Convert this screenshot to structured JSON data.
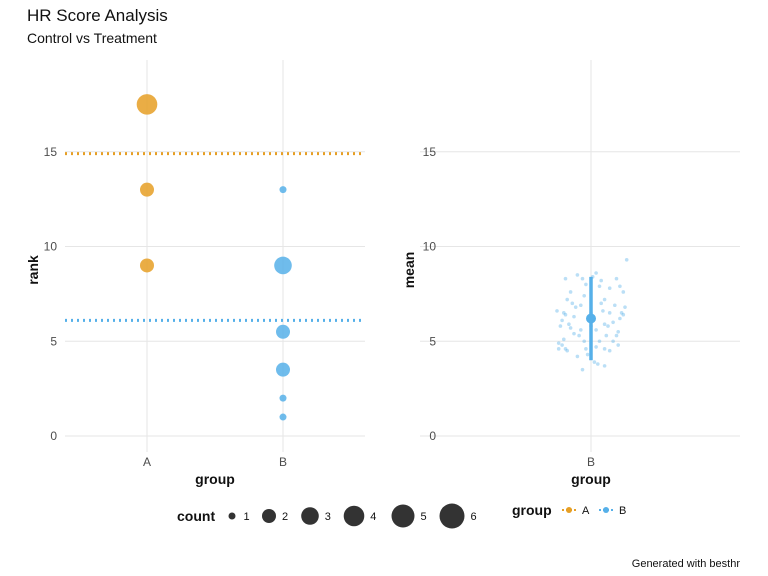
{
  "chart_data": [
    {
      "type": "scatter",
      "title": "HR Score Analysis",
      "subtitle": "Control vs Treatment",
      "xlabel": "group",
      "ylabel": "rank",
      "categories": [
        "A",
        "B"
      ],
      "ylim": [
        -0.8,
        19
      ],
      "yticks": [
        0,
        5,
        10,
        15
      ],
      "grid": true,
      "points": [
        {
          "group": "A",
          "rank": 17.5,
          "count": 4
        },
        {
          "group": "A",
          "rank": 13,
          "count": 2
        },
        {
          "group": "A",
          "rank": 9,
          "count": 2
        },
        {
          "group": "B",
          "rank": 13,
          "count": 1
        },
        {
          "group": "B",
          "rank": 9,
          "count": 3
        },
        {
          "group": "B",
          "rank": 5.5,
          "count": 2
        },
        {
          "group": "B",
          "rank": 3.5,
          "count": 2
        },
        {
          "group": "B",
          "rank": 2,
          "count": 1
        },
        {
          "group": "B",
          "rank": 1,
          "count": 1
        }
      ],
      "hlines": [
        {
          "group": "A",
          "value": 14.9
        },
        {
          "group": "B",
          "value": 6.1
        }
      ]
    },
    {
      "type": "scatter",
      "xlabel": "group",
      "ylabel": "mean",
      "categories": [
        "B"
      ],
      "ylim": [
        -0.8,
        19
      ],
      "yticks": [
        0,
        5,
        10,
        15
      ],
      "grid": true,
      "summary": {
        "group": "B",
        "mean": 6.2,
        "low": 4.0,
        "high": 8.4
      },
      "jitter_points": [
        [
          -0.08,
          8.5
        ],
        [
          0.01,
          8.4
        ],
        [
          0.03,
          8.6
        ],
        [
          -0.05,
          8.3
        ],
        [
          0.06,
          8.2
        ],
        [
          0.15,
          8.3
        ],
        [
          -0.15,
          8.3
        ],
        [
          0.21,
          9.3
        ],
        [
          -0.12,
          7.6
        ],
        [
          -0.03,
          8.0
        ],
        [
          0.05,
          7.9
        ],
        [
          0.17,
          7.9
        ],
        [
          0.11,
          7.8
        ],
        [
          0.19,
          7.6
        ],
        [
          -0.14,
          7.2
        ],
        [
          0.08,
          7.2
        ],
        [
          -0.11,
          7.0
        ],
        [
          -0.06,
          6.9
        ],
        [
          -0.04,
          7.4
        ],
        [
          -0.09,
          6.8
        ],
        [
          0.14,
          6.9
        ],
        [
          0.2,
          6.8
        ],
        [
          0.07,
          6.6
        ],
        [
          0.11,
          6.5
        ],
        [
          0.18,
          6.5
        ],
        [
          -0.2,
          6.6
        ],
        [
          -0.16,
          6.5
        ],
        [
          -0.15,
          6.4
        ],
        [
          0.0,
          6.5
        ],
        [
          -0.17,
          6.1
        ],
        [
          0.13,
          6.0
        ],
        [
          -0.13,
          5.9
        ],
        [
          -0.12,
          5.7
        ],
        [
          -0.06,
          5.6
        ],
        [
          -0.1,
          5.4
        ],
        [
          0.03,
          5.6
        ],
        [
          0.08,
          5.9
        ],
        [
          0.1,
          5.8
        ],
        [
          0.17,
          6.2
        ],
        [
          0.19,
          6.4
        ],
        [
          0.16,
          5.5
        ],
        [
          -0.18,
          5.8
        ],
        [
          -0.16,
          5.1
        ],
        [
          -0.19,
          4.9
        ],
        [
          -0.17,
          4.8
        ],
        [
          -0.07,
          5.3
        ],
        [
          -0.04,
          5.0
        ],
        [
          0.05,
          5.0
        ],
        [
          0.09,
          5.3
        ],
        [
          0.13,
          5.0
        ],
        [
          0.16,
          4.8
        ],
        [
          0.15,
          5.3
        ],
        [
          -0.19,
          4.6
        ],
        [
          -0.15,
          4.6
        ],
        [
          -0.14,
          4.5
        ],
        [
          -0.03,
          4.6
        ],
        [
          0.03,
          4.7
        ],
        [
          0.08,
          4.6
        ],
        [
          0.11,
          4.5
        ],
        [
          -0.08,
          4.2
        ],
        [
          0.02,
          3.9
        ],
        [
          0.04,
          3.8
        ],
        [
          0.08,
          3.7
        ],
        [
          -0.05,
          3.5
        ],
        [
          -0.02,
          4.3
        ],
        [
          0.0,
          5.8
        ],
        [
          -0.1,
          6.3
        ],
        [
          0.06,
          7.0
        ]
      ]
    }
  ],
  "legend": {
    "count_title": "count",
    "count_values": [
      "1",
      "2",
      "3",
      "4",
      "5",
      "6"
    ],
    "group_title": "group",
    "group_values": [
      "A",
      "B"
    ]
  },
  "colors": {
    "A": "#E69F25",
    "B": "#56B0E9",
    "ink": "#333333"
  },
  "caption": "Generated with besthr"
}
